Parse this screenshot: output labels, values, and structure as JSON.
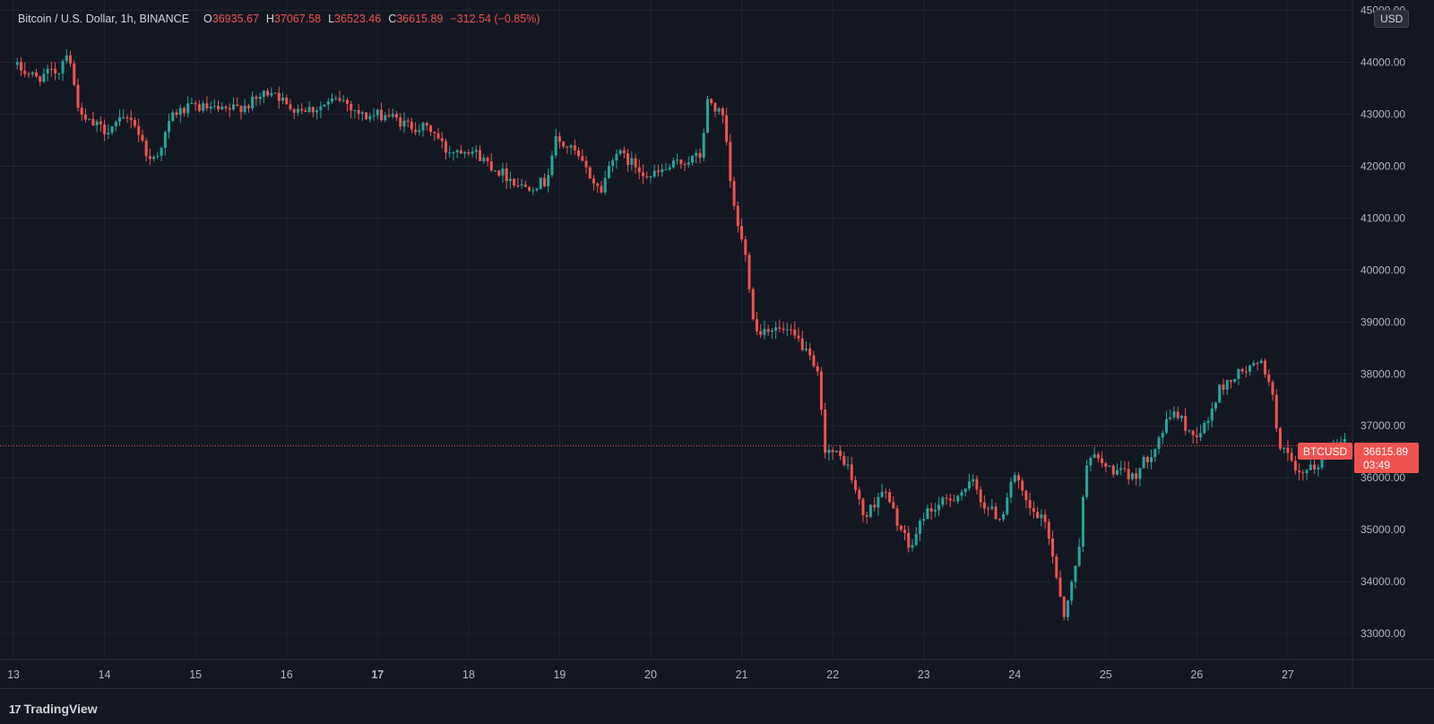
{
  "header": {
    "symbol": "Bitcoin / U.S. Dollar, 1h, BINANCE",
    "open_label": "O",
    "open": "36935.67",
    "high_label": "H",
    "high": "37067.58",
    "low_label": "L",
    "low": "36523.46",
    "close_label": "C",
    "close": "36615.89",
    "change": "−312.54 (−0.85%)"
  },
  "currency_button": "USD",
  "price_tag": {
    "ticker": "BTCUSD",
    "price": "36615.89",
    "countdown": "03:49"
  },
  "footer": {
    "brand": "TradingView",
    "logo": "17"
  },
  "colors": {
    "background": "#131722",
    "grid": "#1f2433",
    "up": "#26a69a",
    "down": "#ef5350",
    "text": "#d1d4dc",
    "axis_text": "#b2b5be"
  },
  "chart_data": {
    "type": "candlestick",
    "y_ticks": [
      "45000.00",
      "44000.00",
      "43000.00",
      "42000.00",
      "41000.00",
      "40000.00",
      "39000.00",
      "38000.00",
      "37000.00",
      "36000.00",
      "35000.00",
      "34000.00",
      "33000.00"
    ],
    "ylim": [
      32500,
      45200
    ],
    "x_ticks": [
      {
        "label": "13",
        "day": 13,
        "bold": false
      },
      {
        "label": "14",
        "day": 14,
        "bold": false
      },
      {
        "label": "15",
        "day": 15,
        "bold": false
      },
      {
        "label": "16",
        "day": 16,
        "bold": false
      },
      {
        "label": "17",
        "day": 17,
        "bold": true
      },
      {
        "label": "18",
        "day": 18,
        "bold": false
      },
      {
        "label": "19",
        "day": 19,
        "bold": false
      },
      {
        "label": "20",
        "day": 20,
        "bold": false
      },
      {
        "label": "21",
        "day": 21,
        "bold": false
      },
      {
        "label": "22",
        "day": 22,
        "bold": false
      },
      {
        "label": "23",
        "day": 23,
        "bold": false
      },
      {
        "label": "24",
        "day": 24,
        "bold": false
      },
      {
        "label": "25",
        "day": 25,
        "bold": false
      },
      {
        "label": "26",
        "day": 26,
        "bold": false
      },
      {
        "label": "27",
        "day": 27,
        "bold": false
      }
    ],
    "xlim": [
      12.97,
      27.69
    ],
    "last_price": 36615.89,
    "price_path": [
      [
        13.0,
        43950
      ],
      [
        13.25,
        43700
      ],
      [
        13.5,
        43850
      ],
      [
        13.6,
        44300
      ],
      [
        13.67,
        43500
      ],
      [
        13.75,
        42900
      ],
      [
        14.0,
        42700
      ],
      [
        14.3,
        42950
      ],
      [
        14.5,
        42100
      ],
      [
        14.6,
        42300
      ],
      [
        14.75,
        43000
      ],
      [
        15.0,
        43150
      ],
      [
        15.3,
        43050
      ],
      [
        15.6,
        43200
      ],
      [
        15.85,
        43500
      ],
      [
        16.0,
        43150
      ],
      [
        16.3,
        43100
      ],
      [
        16.6,
        43300
      ],
      [
        16.85,
        42950
      ],
      [
        17.1,
        43000
      ],
      [
        17.3,
        42800
      ],
      [
        17.6,
        42700
      ],
      [
        17.75,
        42300
      ],
      [
        18.0,
        42350
      ],
      [
        18.3,
        41950
      ],
      [
        18.6,
        41600
      ],
      [
        18.85,
        41700
      ],
      [
        18.95,
        42500
      ],
      [
        19.15,
        42300
      ],
      [
        19.3,
        41900
      ],
      [
        19.45,
        41500
      ],
      [
        19.6,
        42300
      ],
      [
        19.8,
        42050
      ],
      [
        20.0,
        41800
      ],
      [
        20.3,
        42050
      ],
      [
        20.55,
        42200
      ],
      [
        20.63,
        43300
      ],
      [
        20.8,
        42900
      ],
      [
        20.9,
        41300
      ],
      [
        21.05,
        40200
      ],
      [
        21.15,
        38800
      ],
      [
        21.3,
        38900
      ],
      [
        21.5,
        38800
      ],
      [
        21.65,
        38600
      ],
      [
        21.85,
        37900
      ],
      [
        21.9,
        36600
      ],
      [
        22.15,
        36300
      ],
      [
        22.35,
        35200
      ],
      [
        22.55,
        35800
      ],
      [
        22.75,
        35000
      ],
      [
        22.85,
        34600
      ],
      [
        23.0,
        35300
      ],
      [
        23.3,
        35600
      ],
      [
        23.55,
        35900
      ],
      [
        23.65,
        35500
      ],
      [
        23.85,
        35200
      ],
      [
        23.98,
        36100
      ],
      [
        24.15,
        35400
      ],
      [
        24.35,
        35100
      ],
      [
        24.45,
        34200
      ],
      [
        24.55,
        33300
      ],
      [
        24.7,
        34600
      ],
      [
        24.8,
        36500
      ],
      [
        25.0,
        36200
      ],
      [
        25.3,
        36000
      ],
      [
        25.5,
        36500
      ],
      [
        25.75,
        37300
      ],
      [
        25.95,
        36800
      ],
      [
        26.1,
        37000
      ],
      [
        26.25,
        37700
      ],
      [
        26.45,
        38000
      ],
      [
        26.7,
        38200
      ],
      [
        26.8,
        37900
      ],
      [
        26.9,
        36700
      ],
      [
        27.0,
        36400
      ],
      [
        27.1,
        36000
      ],
      [
        27.3,
        36200
      ],
      [
        27.5,
        36600
      ],
      [
        27.65,
        36900
      ]
    ]
  }
}
